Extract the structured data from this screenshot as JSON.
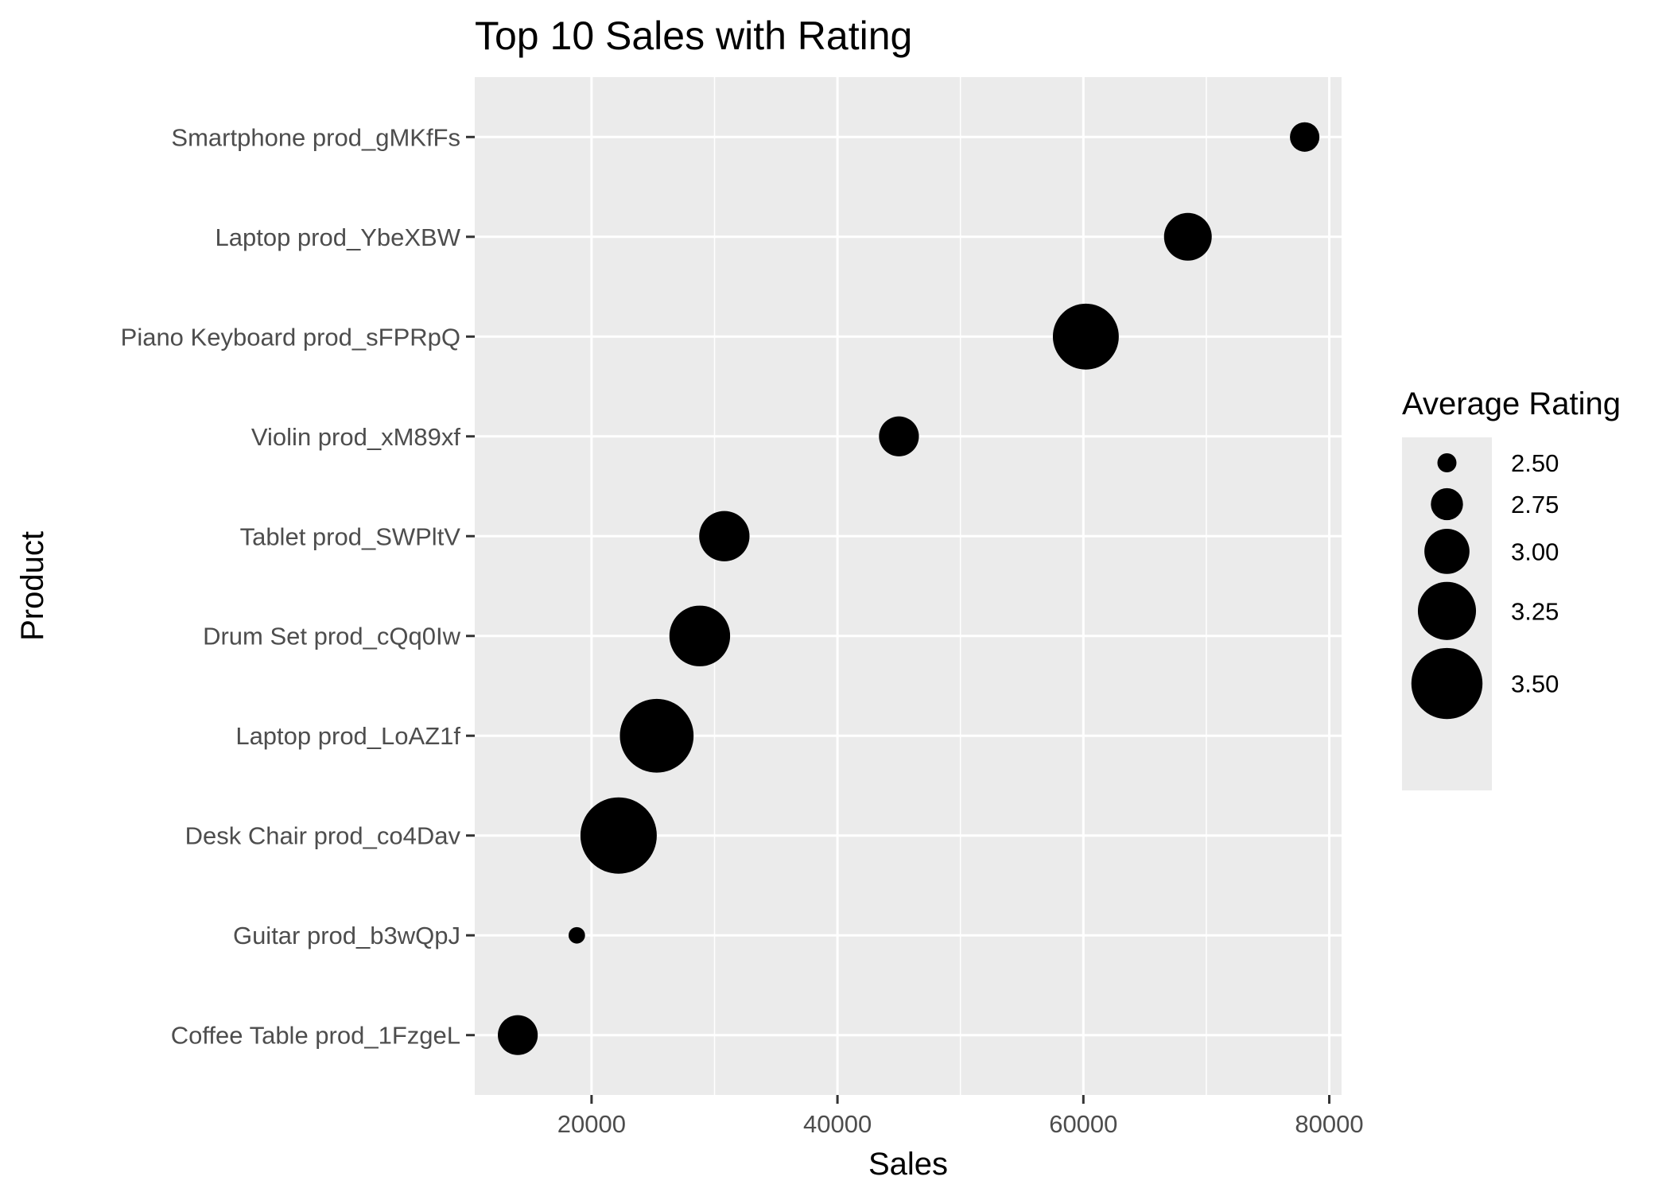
{
  "chart_data": {
    "type": "scatter",
    "title": "Top 10 Sales with Rating",
    "xlabel": "Sales",
    "ylabel": "Product",
    "xlim": [
      10500,
      81000
    ],
    "x_ticks": [
      20000,
      40000,
      60000,
      80000
    ],
    "x_tick_labels": [
      "20000",
      "40000",
      "60000",
      "80000"
    ],
    "grid": true,
    "points": [
      {
        "label": "Smartphone prod_gMKfFs",
        "x": 78000,
        "rating": 2.7
      },
      {
        "label": "Laptop prod_YbeXBW",
        "x": 68500,
        "rating": 3.05
      },
      {
        "label": "Piano Keyboard prod_sFPRpQ",
        "x": 60200,
        "rating": 3.4
      },
      {
        "label": "Violin prod_xM89xf",
        "x": 45000,
        "rating": 2.9
      },
      {
        "label": "Tablet prod_SWPltV",
        "x": 30800,
        "rating": 3.1
      },
      {
        "label": "Drum Set prod_cQq0Iw",
        "x": 28800,
        "rating": 3.3
      },
      {
        "label": "Laptop prod_LoAZ1f",
        "x": 25300,
        "rating": 3.55
      },
      {
        "label": "Desk Chair prod_co4Dav",
        "x": 22200,
        "rating": 3.6
      },
      {
        "label": "Guitar prod_b3wQpJ",
        "x": 18800,
        "rating": 2.45
      },
      {
        "label": "Coffee Table prod_1FzgeL",
        "x": 14000,
        "rating": 2.9
      }
    ],
    "size_legend": {
      "title": "Average Rating",
      "placement": "right",
      "entries": [
        {
          "value": 2.5,
          "label": "2.50"
        },
        {
          "value": 2.75,
          "label": "2.75"
        },
        {
          "value": 3.0,
          "label": "3.00"
        },
        {
          "value": 3.25,
          "label": "3.25"
        },
        {
          "value": 3.5,
          "label": "3.50"
        }
      ]
    },
    "colors": {
      "panel": "#ebebeb",
      "grid": "#ffffff",
      "point": "#000000",
      "tick": "#333333",
      "tick_label": "#4d4d4d"
    }
  }
}
